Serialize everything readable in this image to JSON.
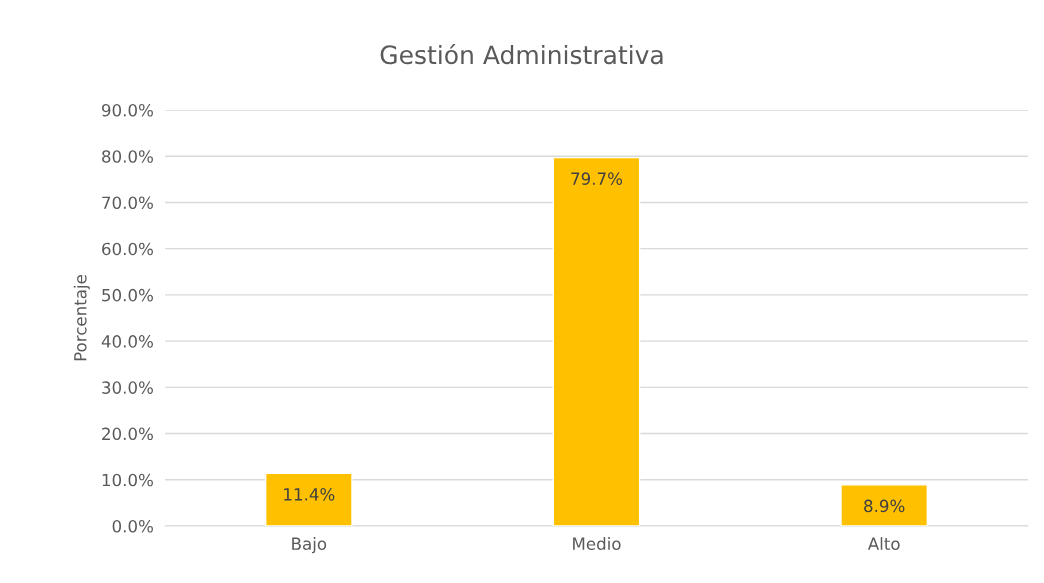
{
  "chart_data": {
    "type": "bar",
    "title": "Gestión Administrativa",
    "ylabel": "Porcentaje",
    "categories": [
      "Bajo",
      "Medio",
      "Alto"
    ],
    "values": [
      11.4,
      79.7,
      8.9
    ],
    "color": "#ffc000",
    "value_labels": [
      "11.4%",
      "79.7%",
      "8.9%"
    ],
    "ylim": [
      0,
      90
    ],
    "yticks": [
      {
        "value": 0,
        "label": "0.0%"
      },
      {
        "value": 10,
        "label": "10.0%"
      },
      {
        "value": 20,
        "label": "20.0%"
      },
      {
        "value": 30,
        "label": "30.0%"
      },
      {
        "value": 40,
        "label": "40.0%"
      },
      {
        "value": 50,
        "label": "50.0%"
      },
      {
        "value": 60,
        "label": "60.0%"
      },
      {
        "value": 70,
        "label": "70.0%"
      },
      {
        "value": 80,
        "label": "80.0%"
      },
      {
        "value": 90,
        "label": "90.0%"
      }
    ],
    "grid": "y"
  }
}
